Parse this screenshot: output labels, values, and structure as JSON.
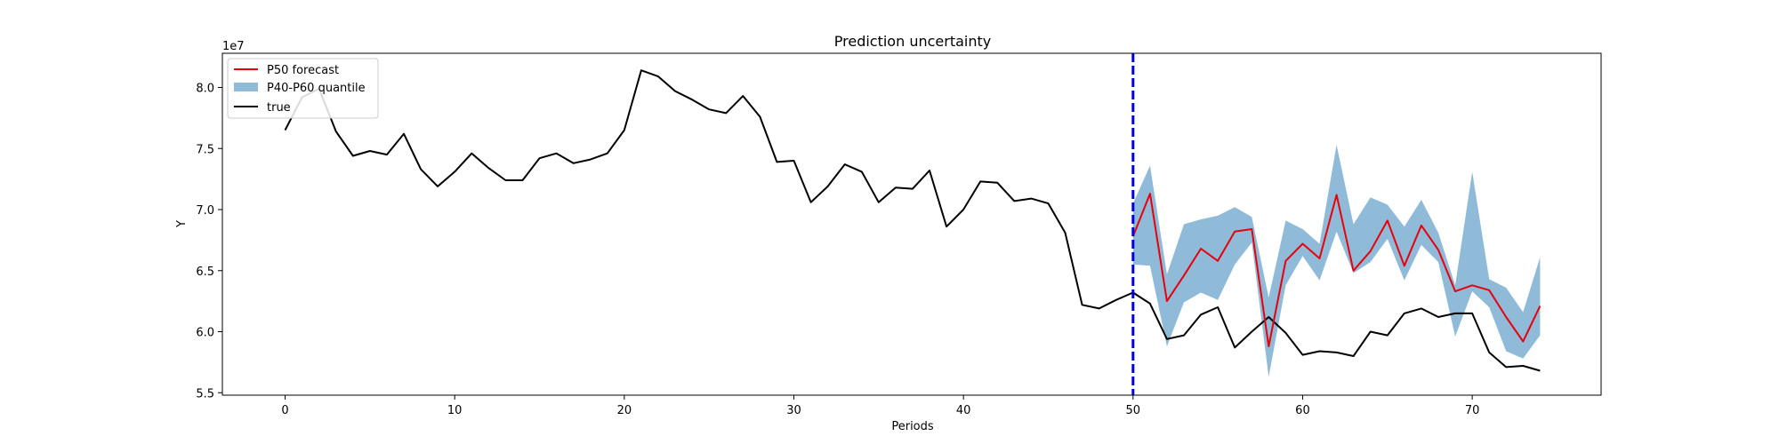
{
  "chart_data": {
    "type": "line",
    "title": "Prediction uncertainty",
    "xlabel": "Periods",
    "ylabel": "Y",
    "y_scale_label": "1e7",
    "xlim": [
      -3.7,
      77.6
    ],
    "ylim": [
      5.48,
      8.28
    ],
    "x_ticks": [
      0,
      10,
      20,
      30,
      40,
      50,
      60,
      70
    ],
    "x_tick_labels": [
      "0",
      "10",
      "20",
      "30",
      "40",
      "50",
      "60",
      "70"
    ],
    "y_ticks": [
      5.5,
      6.0,
      6.5,
      7.0,
      7.5,
      8.0
    ],
    "y_tick_labels": [
      "5.5",
      "6.0",
      "6.5",
      "7.0",
      "7.5",
      "8.0"
    ],
    "vertical_line_x": 50,
    "legend_position": "top-left",
    "series": [
      {
        "name": "P50 forecast",
        "color": "#e8000b",
        "x": [
          50,
          51,
          52,
          53,
          54,
          55,
          56,
          57,
          58,
          59,
          60,
          61,
          62,
          63,
          64,
          65,
          66,
          67,
          68,
          69,
          70,
          71,
          72,
          73,
          74
        ],
        "values": [
          6.78,
          7.13,
          6.25,
          6.46,
          6.68,
          6.58,
          6.82,
          6.84,
          5.88,
          6.58,
          6.72,
          6.6,
          7.12,
          6.5,
          6.66,
          6.91,
          6.54,
          6.87,
          6.67,
          6.33,
          6.38,
          6.34,
          6.12,
          5.92,
          6.21
        ]
      },
      {
        "name": "P40-P60 quantile",
        "type": "band",
        "color": "#8fbbd9",
        "x": [
          50,
          51,
          52,
          53,
          54,
          55,
          56,
          57,
          58,
          59,
          60,
          61,
          62,
          63,
          64,
          65,
          66,
          67,
          68,
          69,
          70,
          71,
          72,
          73,
          74
        ],
        "lower": [
          6.55,
          6.54,
          5.88,
          6.24,
          6.32,
          6.26,
          6.55,
          6.73,
          5.63,
          6.38,
          6.62,
          6.42,
          6.82,
          6.48,
          6.57,
          6.76,
          6.42,
          6.71,
          6.57,
          5.96,
          6.33,
          6.2,
          5.84,
          5.78,
          5.97
        ],
        "upper": [
          7.05,
          7.36,
          6.47,
          6.88,
          6.92,
          6.95,
          7.02,
          6.94,
          6.28,
          6.91,
          6.84,
          6.72,
          7.53,
          6.88,
          7.1,
          7.04,
          6.86,
          7.08,
          6.81,
          6.38,
          7.31,
          6.43,
          6.36,
          6.16,
          6.61
        ]
      },
      {
        "name": "true",
        "color": "#000000",
        "x": [
          0,
          1,
          2,
          3,
          4,
          5,
          6,
          7,
          8,
          9,
          10,
          11,
          12,
          13,
          14,
          15,
          16,
          17,
          18,
          19,
          20,
          21,
          22,
          23,
          24,
          25,
          26,
          27,
          28,
          29,
          30,
          31,
          32,
          33,
          34,
          35,
          36,
          37,
          38,
          39,
          40,
          41,
          42,
          43,
          44,
          45,
          46,
          47,
          48,
          49,
          50,
          51,
          52,
          53,
          54,
          55,
          56,
          57,
          58,
          59,
          60,
          61,
          62,
          63,
          64,
          65,
          66,
          67,
          68,
          69,
          70,
          71,
          72,
          73,
          74
        ],
        "values": [
          7.65,
          7.92,
          7.99,
          7.64,
          7.44,
          7.48,
          7.45,
          7.62,
          7.33,
          7.19,
          7.31,
          7.46,
          7.34,
          7.24,
          7.24,
          7.42,
          7.46,
          7.38,
          7.41,
          7.46,
          7.65,
          8.14,
          8.09,
          7.97,
          7.9,
          7.82,
          7.79,
          7.93,
          7.76,
          7.39,
          7.4,
          7.06,
          7.19,
          7.37,
          7.31,
          7.06,
          7.18,
          7.17,
          7.32,
          6.86,
          7.0,
          7.23,
          7.22,
          7.07,
          7.09,
          7.05,
          6.81,
          6.22,
          6.19,
          6.26,
          6.32,
          6.23,
          5.94,
          5.97,
          6.14,
          6.2,
          5.87,
          6.0,
          6.12,
          5.99,
          5.81,
          5.84,
          5.83,
          5.8,
          6.0,
          5.97,
          6.15,
          6.19,
          6.12,
          6.15,
          6.15,
          5.83,
          5.71,
          5.72,
          5.68
        ]
      }
    ]
  }
}
